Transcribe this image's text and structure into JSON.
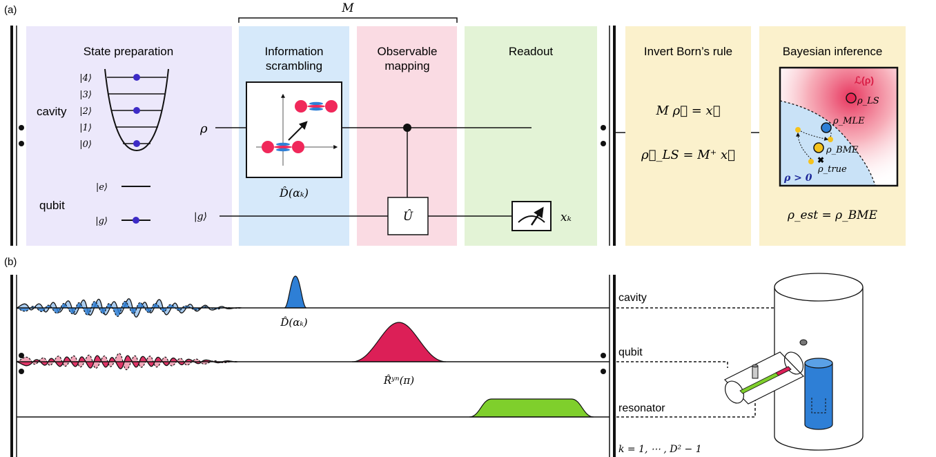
{
  "panel_a": {
    "label": "(a)",
    "bracket_label": "M",
    "stages": {
      "state_prep": "State preparation",
      "scrambling_1": "Information",
      "scrambling_2": "scrambling",
      "mapping_1": "Observable",
      "mapping_2": "mapping",
      "readout": "Readout",
      "invert": "Invert Born’s rule",
      "bayes": "Bayesian inference"
    },
    "cavity_label": "cavity",
    "qubit_label": "qubit",
    "fock_levels": [
      "|4⟩",
      "|3⟩",
      "|2⟩",
      "|1⟩",
      "|0⟩"
    ],
    "qubit_levels": [
      "|e⟩",
      "|g⟩"
    ],
    "rho": "ρ",
    "g_input": "|g⟩",
    "displacement": "D̂(αₖ)",
    "unitary": "Û",
    "outcome": "xₖ",
    "eq1": "M ρ⃗ = x⃗",
    "eq2": "ρ⃗_LS = M⁺ x⃗",
    "likelihood": "ℒ(ρ)",
    "rho_ls": "ρ_LS",
    "rho_mle": "ρ_MLE",
    "rho_bme": "ρ_BME",
    "rho_true": "ρ_true",
    "positivity": "ρ > 0",
    "estimate": "ρ_est = ρ_BME"
  },
  "panel_b": {
    "label": "(b)",
    "pulse_displacement": "D̂(αₖ)",
    "pulse_rotation": "R̂ʸⁿ(π)",
    "channels": [
      "cavity",
      "qubit",
      "resonator"
    ],
    "repeat": "k = 1, ⋯ , D² − 1"
  },
  "colors": {
    "state_prep": "#ece8fb",
    "scrambling": "#d6e9fa",
    "mapping": "#fadbe3",
    "readout": "#e3f3d6",
    "analysis": "#fbf1cc",
    "cavity_pulse": "#2e7fd6",
    "qubit_pulse": "#dc1f57",
    "readout_pulse": "#7fcf2c",
    "dot_purple": "#3d2bc6",
    "dot_red": "#f0285a",
    "dot_yellow": "#f5c21b"
  }
}
